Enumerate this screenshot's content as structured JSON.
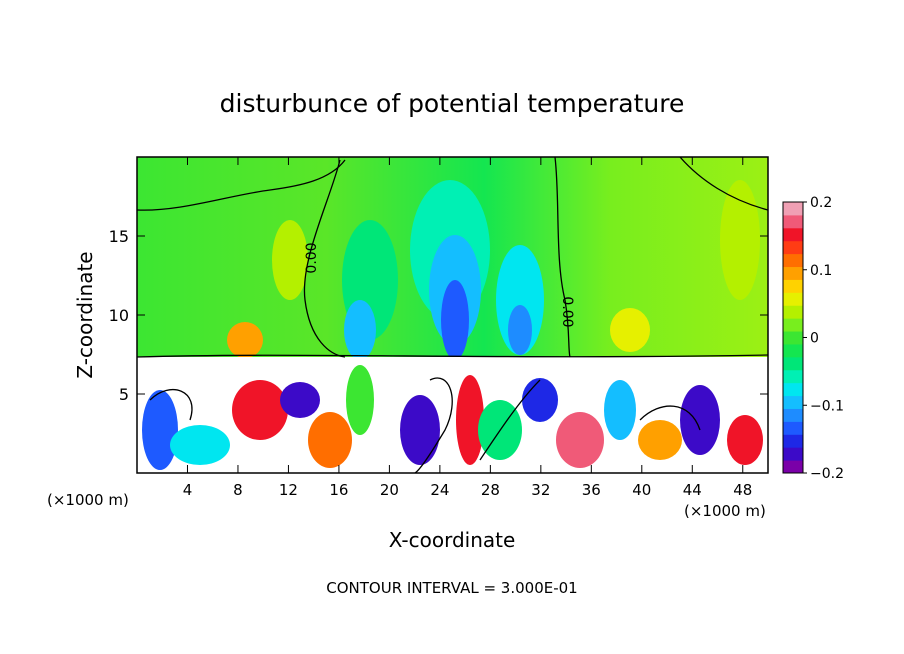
{
  "chart_data": {
    "type": "heatmap",
    "title": "disturbunce of potential temperature",
    "xlabel": "X-coordinate",
    "ylabel": "Z-coordinate",
    "x_unit": "(×1000 m)",
    "x_unit_right": "(×1000 m)",
    "xlim": [
      0,
      50
    ],
    "ylim": [
      0,
      20
    ],
    "x_ticks": [
      4,
      8,
      12,
      16,
      20,
      24,
      28,
      32,
      36,
      40,
      44,
      48
    ],
    "y_ticks": [
      5,
      10,
      15
    ],
    "contour_interval_text": "CONTOUR INTERVAL = 3.000E-01",
    "contour_labels": [
      "0.00",
      "0.00"
    ],
    "colorbar": {
      "min": -0.2,
      "max": 0.2,
      "tick_labels": [
        "0.2",
        "0.1",
        "0",
        "−0.1",
        "−0.2"
      ],
      "colors": [
        "#7a00a8",
        "#3c0ac8",
        "#1e28e6",
        "#1e5aff",
        "#1e8cff",
        "#14beff",
        "#00e6f0",
        "#00f0b4",
        "#00e678",
        "#14e650",
        "#3ce632",
        "#78ee1e",
        "#b4f000",
        "#e6f000",
        "#ffd200",
        "#ffa000",
        "#ff6e00",
        "#ff3c14",
        "#f01428",
        "#f05a78",
        "#f0a0b4"
      ]
    }
  }
}
